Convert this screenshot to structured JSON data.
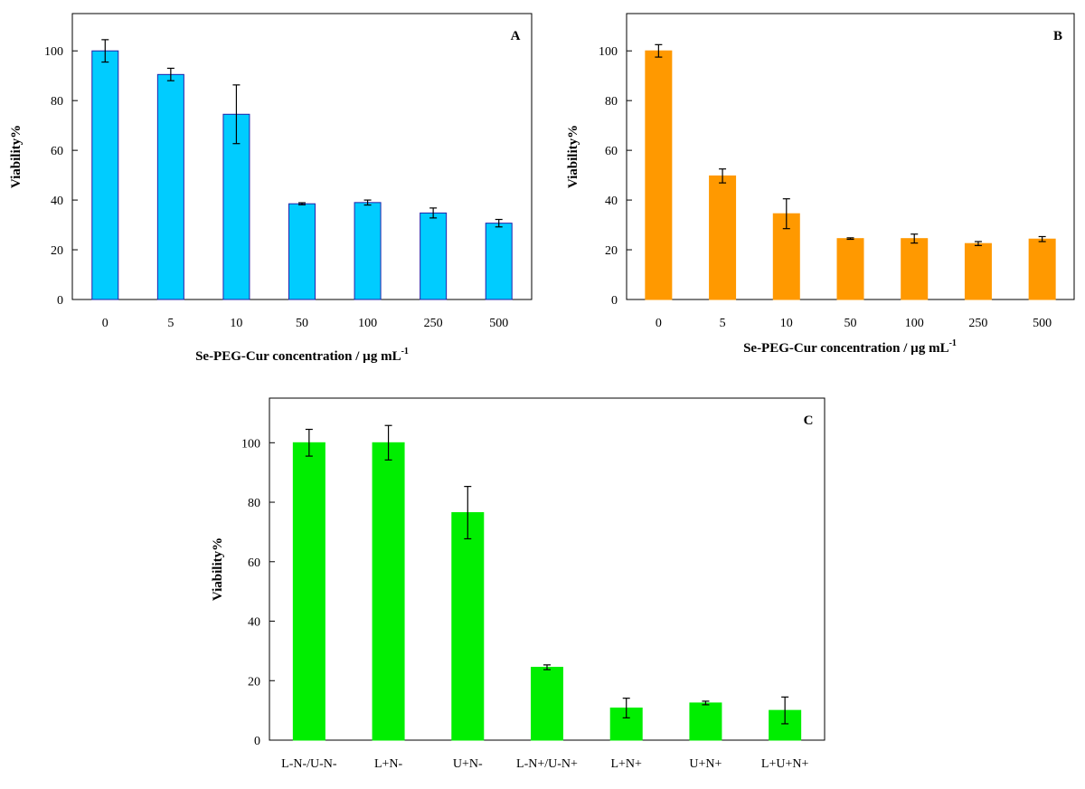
{
  "chart_data": [
    {
      "type": "bar",
      "panel_label": "A",
      "categories": [
        "0",
        "5",
        "10",
        "50",
        "100",
        "250",
        "500"
      ],
      "values": [
        100,
        90.5,
        74.5,
        38.5,
        39,
        34.8,
        30.7
      ],
      "errors": [
        4.5,
        2.5,
        11.8,
        0.4,
        1.0,
        2.0,
        1.5
      ],
      "ylim": [
        0,
        115
      ],
      "yticks": [
        "0",
        "20",
        "40",
        "60",
        "80",
        "100"
      ],
      "ylabel": "Viability%",
      "xlabel": "Se-PEG-Cur concentration / µg mL",
      "xlabel_sup": "-1",
      "bar_color": "#00ccff",
      "bar_edge": "#2222aa",
      "grid": false
    },
    {
      "type": "bar",
      "panel_label": "B",
      "categories": [
        "0",
        "5",
        "10",
        "50",
        "100",
        "250",
        "500"
      ],
      "values": [
        100,
        49.7,
        34.5,
        24.5,
        24.5,
        22.5,
        24.3
      ],
      "errors": [
        2.5,
        2.8,
        6.0,
        0.3,
        1.8,
        0.8,
        1.0
      ],
      "ylim": [
        0,
        115
      ],
      "yticks": [
        "0",
        "20",
        "40",
        "60",
        "80",
        "100"
      ],
      "ylabel": "Viability%",
      "xlabel": "Se-PEG-Cur concentration / µg mL",
      "xlabel_sup": "-1",
      "bar_color": "#ff9900",
      "bar_edge": "#ff9900",
      "grid": false
    },
    {
      "type": "bar",
      "panel_label": "C",
      "categories": [
        "L-N-/U-N-",
        "L+N-",
        "U+N-",
        "L-N+/U-N+",
        "L+N+",
        "U+N+",
        "L+U+N+"
      ],
      "values": [
        100,
        100,
        76.5,
        24.5,
        10.8,
        12.5,
        10.0
      ],
      "errors": [
        4.5,
        5.8,
        8.8,
        0.8,
        3.3,
        0.6,
        4.5
      ],
      "ylim": [
        0,
        115
      ],
      "yticks": [
        "0",
        "20",
        "40",
        "60",
        "80",
        "100"
      ],
      "ylabel": "Viability%",
      "xlabel": "",
      "bar_color": "#00ee00",
      "bar_edge": "#00ee00",
      "grid": false
    }
  ]
}
